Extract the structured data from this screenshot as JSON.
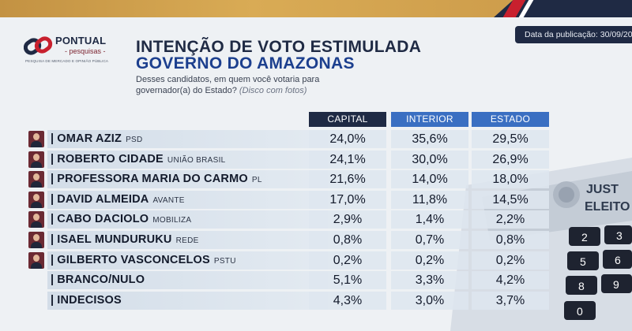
{
  "header": {
    "date_label": "Data da publicação: 30/09/20"
  },
  "logo": {
    "name": "PONTUAL",
    "sub": "- pesquisas -",
    "tagline": "PESQUISA DE MERCADO E OPINIÃO PÚBLICA"
  },
  "title": "INTENÇÃO DE VOTO ESTIMULADA",
  "subtitle": "GOVERNO DO AMAZONAS",
  "question": "Desses candidatos, em quem você votaria para governador(a) do Estado?",
  "question_note": "(Disco com fotos)",
  "columns": {
    "capital": "CAPITAL",
    "interior": "INTERIOR",
    "estado": "ESTADO"
  },
  "rows": [
    {
      "name": "OMAR AZIZ",
      "party": "PSD",
      "capital": "24,0%",
      "interior": "35,6%",
      "estado": "29,5%"
    },
    {
      "name": "ROBERTO CIDADE",
      "party": "UNIÃO BRASIL",
      "capital": "24,1%",
      "interior": "30,0%",
      "estado": "26,9%"
    },
    {
      "name": "PROFESSORA MARIA DO CARMO",
      "party": "PL",
      "capital": "21,6%",
      "interior": "14,0%",
      "estado": "18,0%"
    },
    {
      "name": "DAVID ALMEIDA",
      "party": "AVANTE",
      "capital": "17,0%",
      "interior": "11,8%",
      "estado": "14,5%"
    },
    {
      "name": "CABO DACIOLO",
      "party": "MOBILIZA",
      "capital": "2,9%",
      "interior": "1,4%",
      "estado": "2,2%"
    },
    {
      "name": "ISAEL MUNDURUKU",
      "party": "REDE",
      "capital": "0,8%",
      "interior": "0,7%",
      "estado": "0,8%"
    },
    {
      "name": "GILBERTO VASCONCELOS",
      "party": "PSTU",
      "capital": "0,2%",
      "interior": "0,2%",
      "estado": "0,2%"
    },
    {
      "name": "BRANCO/NULO",
      "party": "",
      "capital": "5,1%",
      "interior": "3,3%",
      "estado": "4,2%"
    },
    {
      "name": "INDECISOS",
      "party": "",
      "capital": "4,3%",
      "interior": "3,0%",
      "estado": "3,7%"
    }
  ],
  "decor": {
    "urna_text_line1": "JUST",
    "urna_text_line2": "ELEITO",
    "keypad_digits": [
      "2",
      "3",
      "5",
      "6",
      "8",
      "9",
      "0"
    ]
  },
  "colors": {
    "gold": "#c9994a",
    "navy": "#1f2a44",
    "blue": "#3a6fc2",
    "red_accent": "#c8202e"
  }
}
